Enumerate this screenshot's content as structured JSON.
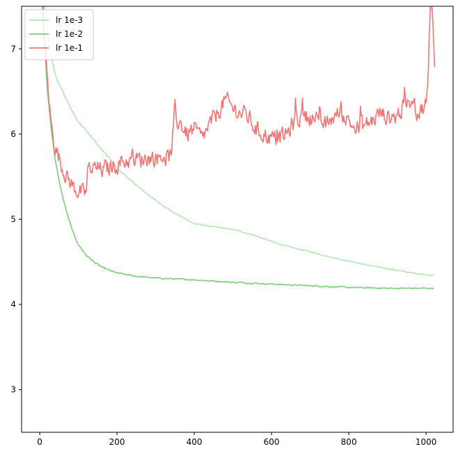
{
  "chart_data": {
    "type": "line",
    "title": "",
    "xlabel": "",
    "ylabel": "",
    "xlim": [
      -47,
      1070
    ],
    "ylim": [
      2.5,
      7.5
    ],
    "xticks": [
      0,
      200,
      400,
      600,
      800,
      1000
    ],
    "yticks": [
      3,
      4,
      5,
      6,
      7
    ],
    "grid": false,
    "legend_position": "top-left",
    "series": [
      {
        "name": "lr 1e-3",
        "color": "#b7e4b5",
        "x": [
          0,
          10,
          20,
          30,
          40,
          50,
          60,
          70,
          80,
          100,
          120,
          140,
          160,
          180,
          200,
          250,
          300,
          350,
          400,
          450,
          500,
          550,
          600,
          650,
          700,
          750,
          800,
          850,
          900,
          950,
          1000,
          1020
        ],
        "y": [
          8.2,
          7.6,
          7.2,
          6.9,
          6.7,
          6.58,
          6.5,
          6.4,
          6.3,
          6.14,
          6.05,
          5.93,
          5.82,
          5.72,
          5.6,
          5.4,
          5.22,
          5.07,
          4.95,
          4.91,
          4.88,
          4.82,
          4.74,
          4.67,
          4.62,
          4.56,
          4.51,
          4.46,
          4.42,
          4.38,
          4.35,
          4.34
        ],
        "noise": 0.01
      },
      {
        "name": "lr 1e-2",
        "color": "#7ccf79",
        "x": [
          0,
          10,
          20,
          30,
          40,
          50,
          60,
          70,
          80,
          90,
          100,
          120,
          140,
          160,
          180,
          200,
          250,
          300,
          350,
          400,
          500,
          600,
          700,
          800,
          900,
          1000,
          1020
        ],
        "y": [
          8.2,
          7.2,
          6.5,
          6.05,
          5.7,
          5.45,
          5.25,
          5.08,
          4.93,
          4.8,
          4.7,
          4.58,
          4.5,
          4.44,
          4.4,
          4.37,
          4.33,
          4.31,
          4.3,
          4.29,
          4.26,
          4.24,
          4.22,
          4.2,
          4.19,
          4.19,
          4.19
        ],
        "noise": 0.012
      },
      {
        "name": "lr 1e-1",
        "color": "#f87373",
        "x": [
          0,
          10,
          20,
          30,
          40,
          50,
          60,
          70,
          80,
          90,
          100,
          110,
          120,
          125,
          140,
          160,
          180,
          200,
          220,
          240,
          260,
          280,
          300,
          320,
          340,
          345,
          360,
          380,
          400,
          420,
          440,
          460,
          480,
          500,
          520,
          540,
          560,
          580,
          600,
          620,
          640,
          660,
          680,
          700,
          720,
          740,
          760,
          780,
          800,
          820,
          840,
          860,
          880,
          900,
          920,
          940,
          960,
          980,
          1000,
          1005,
          1008,
          1012,
          1018,
          1022
        ],
        "y": [
          8.2,
          7.3,
          6.6,
          6.1,
          5.85,
          5.72,
          5.6,
          5.5,
          5.42,
          5.37,
          5.33,
          5.3,
          5.31,
          5.6,
          5.6,
          5.58,
          5.6,
          5.65,
          5.68,
          5.7,
          5.7,
          5.73,
          5.72,
          5.75,
          5.72,
          6.05,
          6.15,
          6.0,
          6.05,
          5.95,
          6.1,
          6.25,
          6.4,
          6.3,
          6.25,
          6.2,
          6.05,
          6.0,
          5.95,
          5.95,
          6.0,
          6.15,
          6.2,
          6.2,
          6.15,
          6.1,
          6.2,
          6.25,
          6.15,
          6.05,
          6.1,
          6.15,
          6.25,
          6.2,
          6.2,
          6.3,
          6.35,
          6.25,
          6.35,
          6.6,
          7.1,
          7.6,
          7.3,
          6.7
        ],
        "noise": 0.16
      }
    ]
  }
}
